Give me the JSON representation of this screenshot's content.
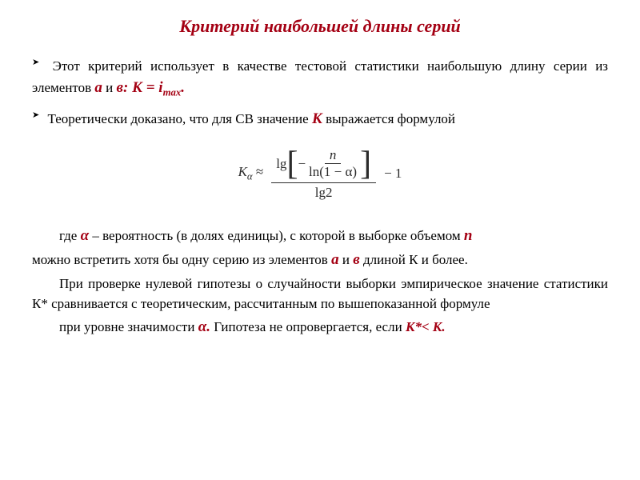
{
  "title": "Критерий наибольшей длины серий",
  "colors": {
    "accent": "#a40013",
    "text": "#000000",
    "formula": "#2b2b2b",
    "background": "#ffffff"
  },
  "typography": {
    "family": "Times New Roman",
    "title_fontsize": 22,
    "body_fontsize": 17,
    "accent_inline_fontsize": 19,
    "formula_fontsize": 17
  },
  "bullets": [
    {
      "pre": "Этот критерий использует в качестве тестовой статистики наибольшую длину серии из элементов ",
      "a": "а",
      "mid1": " и ",
      "b": "в:",
      "formula_prefix": " К = і",
      "formula_sub": "mах",
      "dot": "."
    },
    {
      "pre": "Теоретически доказано, что для СВ значение ",
      "K": "К",
      "post": " выражается формулой"
    }
  ],
  "formula": {
    "lhs_K": "K",
    "lhs_sub": "α",
    "approx": " ≈ ",
    "lg": "lg",
    "minus": "−",
    "n": "n",
    "ln": "ln",
    "one_minus_alpha": "(1 − α)",
    "lg2": "lg2",
    "trail": " − 1"
  },
  "paras": {
    "p1_pre": "где ",
    "p1_alpha": "α",
    "p1_mid": " – вероятность (в долях единицы), с которой в выборке объемом ",
    "p1_n": "п",
    "p2_pre": "можно встретить хотя бы одну серию из элементов ",
    "p2_a": "а",
    "p2_mid": " и ",
    "p2_b": "в",
    "p2_post": " длиной К и более.",
    "p3": "При проверке нулевой гипотезы о случайности выборки эмпирическое значение статистики К* сравнивается с теоретическим, рассчитанным по вышепоказанной формуле",
    "p4_pre": "при уровне значимости ",
    "p4_alpha": "α.",
    "p4_mid": " Гипотеза не опровергается, если ",
    "p4_cond": "К*< К."
  }
}
